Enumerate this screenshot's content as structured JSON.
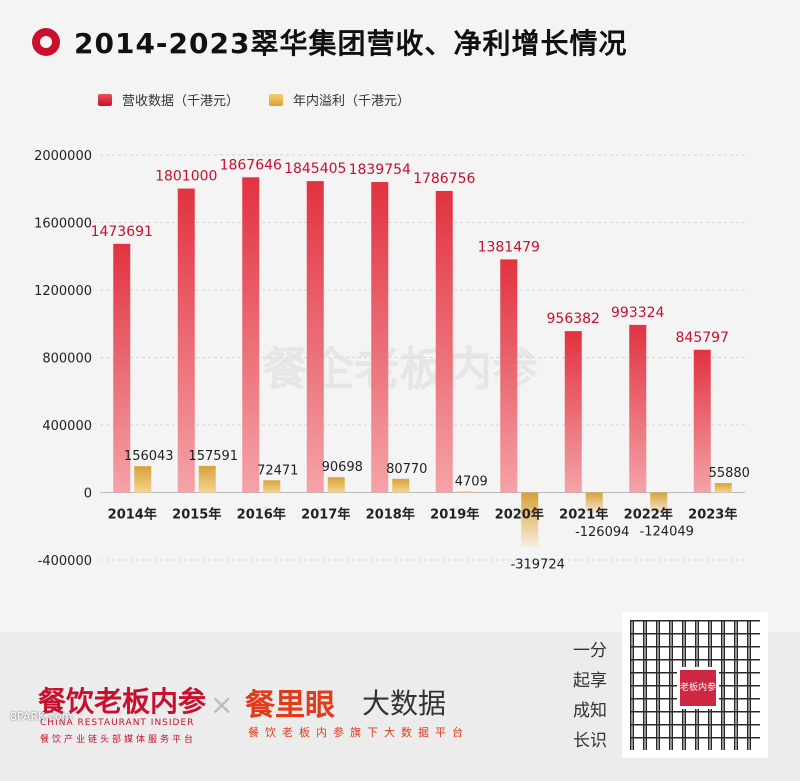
{
  "header": {
    "title": "2014-2023翠华集团营收、净利增长情况"
  },
  "legend": {
    "revenue": "营收数据（千港元）",
    "profit": "年内溢利（千港元）"
  },
  "colors": {
    "revenue": "#d8222f",
    "profit": "#e2b04a",
    "accent": "#c8102e"
  },
  "chart_data": {
    "type": "bar",
    "categories": [
      "2014年",
      "2015年",
      "2016年",
      "2017年",
      "2018年",
      "2019年",
      "2020年",
      "2021年",
      "2022年",
      "2023年"
    ],
    "series": [
      {
        "name": "营收数据（千港元）",
        "values": [
          1473691,
          1801000,
          1867646,
          1845405,
          1839754,
          1786756,
          1381479,
          956382,
          993324,
          845797
        ]
      },
      {
        "name": "年内溢利（千港元）",
        "values": [
          156043,
          157591,
          72471,
          90698,
          80770,
          4709,
          -319724,
          -126094,
          -124049,
          55880
        ]
      }
    ],
    "ylim": [
      -400000,
      2000000
    ],
    "yticks": [
      2000000,
      1600000,
      1200000,
      800000,
      400000,
      0,
      -400000
    ],
    "ytick_labels": [
      "2000000",
      "1600000",
      "1200000",
      "800000",
      "400000",
      "0",
      "-400000"
    ],
    "grid": true,
    "legend_position": "top-left",
    "watermark": "餐企老板内参"
  },
  "footer": {
    "brand1": "餐饮老板内参",
    "brand1_sub": "CHINA RESTAURANT INSIDER",
    "brand1_sub2": "餐饮产业链头部媒体服务平台",
    "separator": "×",
    "brand2": "餐里眼",
    "brand2b": "大数据",
    "brand2_sub": "餐饮老板内参旗下大数据平台",
    "side_text": [
      "一分",
      "起享",
      "成知",
      "长识"
    ],
    "qr_logo": "老板内参",
    "watermark": "8PARK.com"
  }
}
